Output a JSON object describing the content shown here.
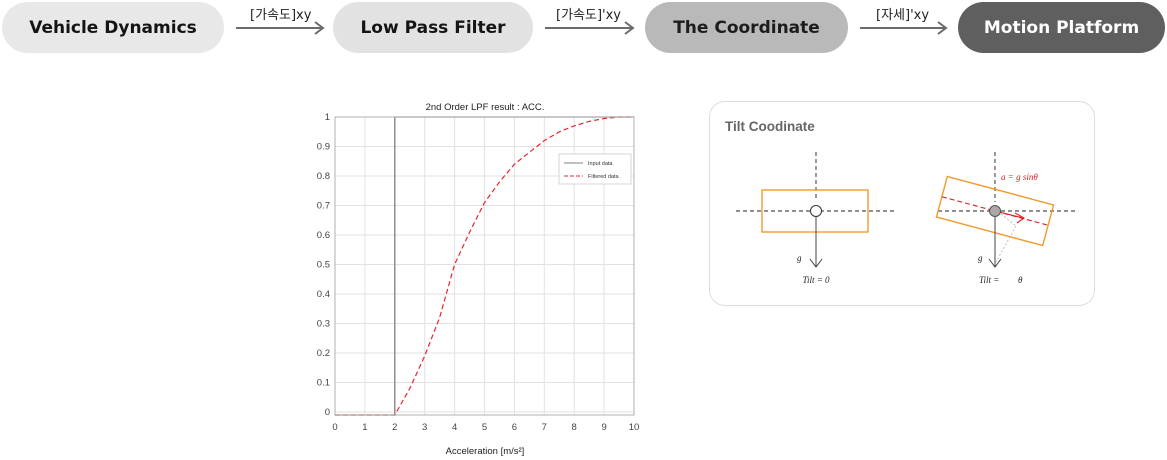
{
  "flow": {
    "steps": [
      {
        "label": "Vehicle Dynamics"
      },
      {
        "label": "Low Pass Filter"
      },
      {
        "label": "The Coordinate"
      },
      {
        "label": "Motion Platform"
      }
    ],
    "arrows": [
      {
        "label": "[가속도]xy"
      },
      {
        "label": "[가속도]'xy"
      },
      {
        "label": "[자세]'xy"
      }
    ],
    "colors": {
      "step1": "#e8e8e8",
      "step2": "#e2e2e2",
      "step3": "#b9b9b9",
      "step4": "#5f5f5f",
      "arrow": "#6b6b6b"
    }
  },
  "chart_data": {
    "type": "line",
    "title": "2nd Order LPF result : ACC.",
    "xlabel": "Acceleration [m/s²]",
    "ylabel": "",
    "xlim": [
      0,
      10
    ],
    "ylim": [
      -0.01,
      1
    ],
    "xticks": [
      "0",
      "1",
      "2",
      "3",
      "4",
      "5",
      "6",
      "7",
      "8",
      "9",
      "10"
    ],
    "yticks": [
      "0",
      "0.1",
      "0.2",
      "0.3",
      "0.4",
      "0.5",
      "0.6",
      "0.7",
      "0.8",
      "0.9",
      "1"
    ],
    "grid": true,
    "legend": "top-right",
    "series": [
      {
        "name": "Input data",
        "color": "#808080",
        "style": "solid",
        "x": [
          0,
          2,
          2,
          10
        ],
        "y": [
          -0.01,
          -0.01,
          1,
          1
        ]
      },
      {
        "name": "Filtered data",
        "color": "#e8262c",
        "style": "dashed",
        "x": [
          0,
          2,
          2.5,
          3,
          3.5,
          4,
          4.5,
          5,
          5.5,
          6,
          6.5,
          7,
          7.5,
          8,
          8.5,
          9,
          9.5,
          10
        ],
        "y": [
          -0.01,
          -0.01,
          0.08,
          0.19,
          0.32,
          0.5,
          0.61,
          0.71,
          0.78,
          0.84,
          0.88,
          0.92,
          0.95,
          0.97,
          0.985,
          0.995,
          1.0,
          1.0
        ]
      }
    ]
  },
  "tilt": {
    "title": "Tilt Coodinate",
    "left": {
      "g_label": "g",
      "caption": "Tilt = 0"
    },
    "right": {
      "g_label": "g",
      "caption_prefix": "Tilt =",
      "caption_value": "θ",
      "formula": "a = g sinθ"
    },
    "colors": {
      "box": "#f29a2e",
      "formula": "#e02020",
      "mass": "#a8a8a8"
    }
  }
}
